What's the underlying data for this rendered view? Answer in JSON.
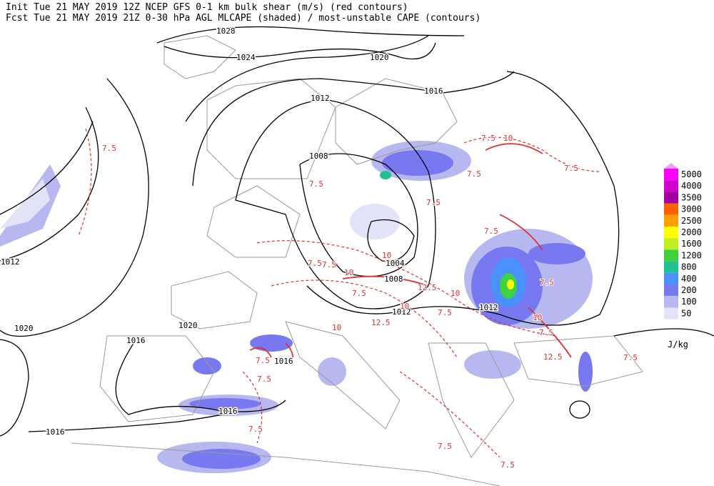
{
  "header": {
    "line1": "Init  Tue 21 MAY 2019 12Z  NCEP GFS 0-1 km bulk shear (m/s) (red contours)",
    "line2": "Fcst Tue 21 MAY 2019 21Z  0-30 hPa AGL MLCAPE (shaded) / most-unstable CAPE (contours)"
  },
  "legend": {
    "levels": [
      {
        "value": 5000,
        "color": "#ff00ff"
      },
      {
        "value": 4000,
        "color": "#d000d0"
      },
      {
        "value": 3500,
        "color": "#a000a0"
      },
      {
        "value": 3000,
        "color": "#ff6000"
      },
      {
        "value": 2500,
        "color": "#ffa000"
      },
      {
        "value": 2000,
        "color": "#ffff00"
      },
      {
        "value": 1600,
        "color": "#c0f020"
      },
      {
        "value": 1200,
        "color": "#40d040"
      },
      {
        "value": 800,
        "color": "#20c090"
      },
      {
        "value": 400,
        "color": "#4a90ff"
      },
      {
        "value": 200,
        "color": "#7878f0"
      },
      {
        "value": 100,
        "color": "#b8b8f0"
      },
      {
        "value": 50,
        "color": "#e2e2f8"
      }
    ],
    "unit": "J/kg"
  },
  "isobar_labels": [
    1028,
    1024,
    1020,
    1016,
    1012,
    1008,
    1004,
    1008,
    1012,
    1012,
    1020,
    1016,
    1016,
    1016,
    1016,
    1020,
    1012
  ],
  "shear_labels": [
    7.5,
    7.5,
    10,
    7.5,
    7.5,
    7.5,
    7.5,
    7.5,
    7.5,
    7.5,
    10,
    10,
    7.5,
    12.5,
    10,
    7.5,
    10,
    7.5,
    10,
    12.5,
    10,
    7.5,
    7.5,
    7.5,
    12.5,
    7.5,
    7.5,
    7.5,
    7.5
  ]
}
